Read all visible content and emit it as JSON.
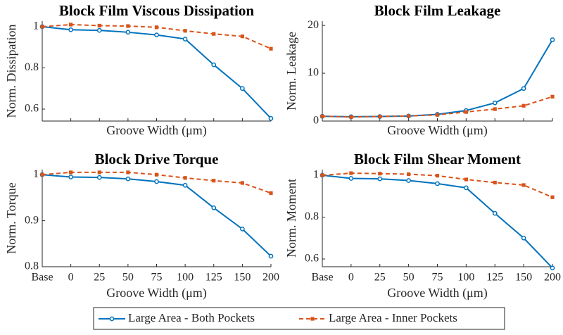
{
  "chart_data": [
    {
      "type": "line",
      "title": "Block Film Viscous Dissipation",
      "xlabel": "Groove Width (μm)",
      "ylabel": "Norm. Dissipation",
      "categories": [
        null,
        null,
        null,
        null,
        null,
        null,
        null,
        null,
        null
      ],
      "ylim": [
        0.542,
        1.027
      ],
      "yticks": [
        0.6,
        0.8,
        1
      ],
      "series": [
        {
          "name": "Large Area - Both Pockets",
          "color": "#0072bd",
          "values": [
            1,
            0.985,
            0.982,
            0.973,
            0.96,
            0.94,
            0.815,
            0.7,
            0.555
          ]
        },
        {
          "name": "Large Area - Inner Pockets",
          "color": "#d95319",
          "values": [
            1,
            1.01,
            1.005,
            1.003,
            0.997,
            0.98,
            0.965,
            0.953,
            0.893
          ]
        }
      ]
    },
    {
      "type": "line",
      "title": "Block Film Leakage",
      "xlabel": "Groove Width (μm)",
      "ylabel": "Norm. Leakage",
      "categories": [
        null,
        null,
        null,
        null,
        null,
        null,
        null,
        null,
        null
      ],
      "ylim": [
        0,
        20.9
      ],
      "yticks": [
        0,
        10,
        20
      ],
      "series": [
        {
          "color": "#0072bd",
          "values": [
            1,
            0.9,
            0.95,
            1.05,
            1.4,
            2.2,
            3.8,
            6.8,
            17
          ]
        },
        {
          "color": "#d95319",
          "values": [
            1,
            0.85,
            0.95,
            1.05,
            1.3,
            1.9,
            2.5,
            3.2,
            5.1
          ]
        }
      ]
    },
    {
      "type": "line",
      "title": "Block Drive Torque",
      "xlabel": "Groove Width (μm)",
      "ylabel": "Norm. Torque",
      "categories": [
        "Base",
        "0",
        "25",
        "50",
        "75",
        "100",
        "125",
        "150",
        "200"
      ],
      "ylim": [
        0.8,
        1.011
      ],
      "yticks": [
        0.8,
        0.9,
        1
      ],
      "series": [
        {
          "color": "#0072bd",
          "values": [
            1,
            0.995,
            0.994,
            0.991,
            0.985,
            0.977,
            0.928,
            0.882,
            0.823
          ]
        },
        {
          "color": "#d95319",
          "values": [
            1,
            1.005,
            1.005,
            1.005,
            1.0,
            0.993,
            0.987,
            0.982,
            0.96
          ]
        }
      ]
    },
    {
      "type": "line",
      "title": "Block Film Shear Moment",
      "xlabel": "Groove Width (μm)",
      "ylabel": "Norm. Moment",
      "categories": [
        "Base",
        "0",
        "25",
        "50",
        "75",
        "100",
        "125",
        "150",
        "200"
      ],
      "ylim": [
        0.563,
        1.027
      ],
      "yticks": [
        0.6,
        0.8,
        1
      ],
      "series": [
        {
          "color": "#0072bd",
          "values": [
            1,
            0.985,
            0.983,
            0.975,
            0.96,
            0.94,
            0.818,
            0.7,
            0.557
          ]
        },
        {
          "color": "#d95319",
          "values": [
            1,
            1.01,
            1.008,
            1.005,
            0.998,
            0.98,
            0.965,
            0.953,
            0.895
          ]
        }
      ]
    }
  ]
}
